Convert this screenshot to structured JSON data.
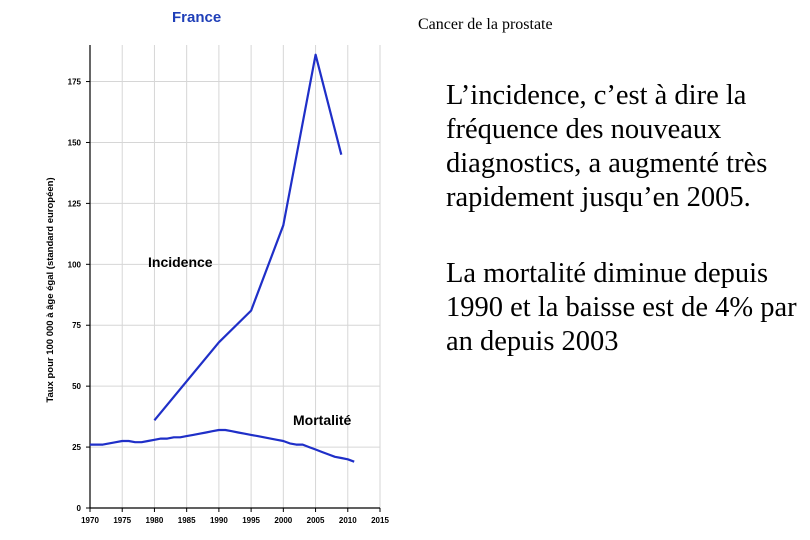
{
  "slide": {
    "header": "Cancer de la prostate",
    "paragraphs": [
      "L’incidence, c’est à dire la fréquence des nouveaux diagnostics, a augmenté très rapidement jusqu’en 2005.",
      "La mortalité diminue depuis 1990 et la baisse est de 4% par an depuis 2003"
    ]
  },
  "chart_data": {
    "type": "line",
    "title": "France",
    "xlabel": "",
    "ylabel": "Taux pour 100 000 à âge égal (standard européen)",
    "xlim": [
      1970,
      2015
    ],
    "ylim": [
      0,
      190
    ],
    "xticks": [
      1970,
      1975,
      1980,
      1985,
      1990,
      1995,
      2000,
      2005,
      2010,
      2015
    ],
    "yticks": [
      0,
      25,
      50,
      75,
      100,
      125,
      150,
      175
    ],
    "grid": true,
    "series": [
      {
        "name": "Incidence",
        "color": "#1f2fc8",
        "x": [
          1980,
          1990,
          1995,
          2000,
          2005,
          2009
        ],
        "y": [
          36,
          68,
          81,
          116,
          186,
          145
        ]
      },
      {
        "name": "Mortalité",
        "color": "#1f2fc8",
        "x": [
          1970,
          1972,
          1974,
          1975,
          1976,
          1977,
          1978,
          1979,
          1980,
          1981,
          1982,
          1983,
          1984,
          1985,
          1986,
          1987,
          1988,
          1989,
          1990,
          1991,
          1992,
          1993,
          1994,
          1995,
          1996,
          1997,
          1998,
          1999,
          2000,
          2001,
          2002,
          2003,
          2004,
          2005,
          2006,
          2007,
          2008,
          2009,
          2010,
          2011
        ],
        "y": [
          26,
          26,
          27,
          27.5,
          27.5,
          27,
          27,
          27.5,
          28,
          28.5,
          28.5,
          29,
          29,
          29.5,
          30,
          30.5,
          31,
          31.5,
          32,
          32,
          31.5,
          31,
          30.5,
          30,
          29.5,
          29,
          28.5,
          28,
          27.5,
          26.5,
          26,
          26,
          25,
          24,
          23,
          22,
          21,
          20.5,
          20,
          19
        ]
      }
    ]
  }
}
